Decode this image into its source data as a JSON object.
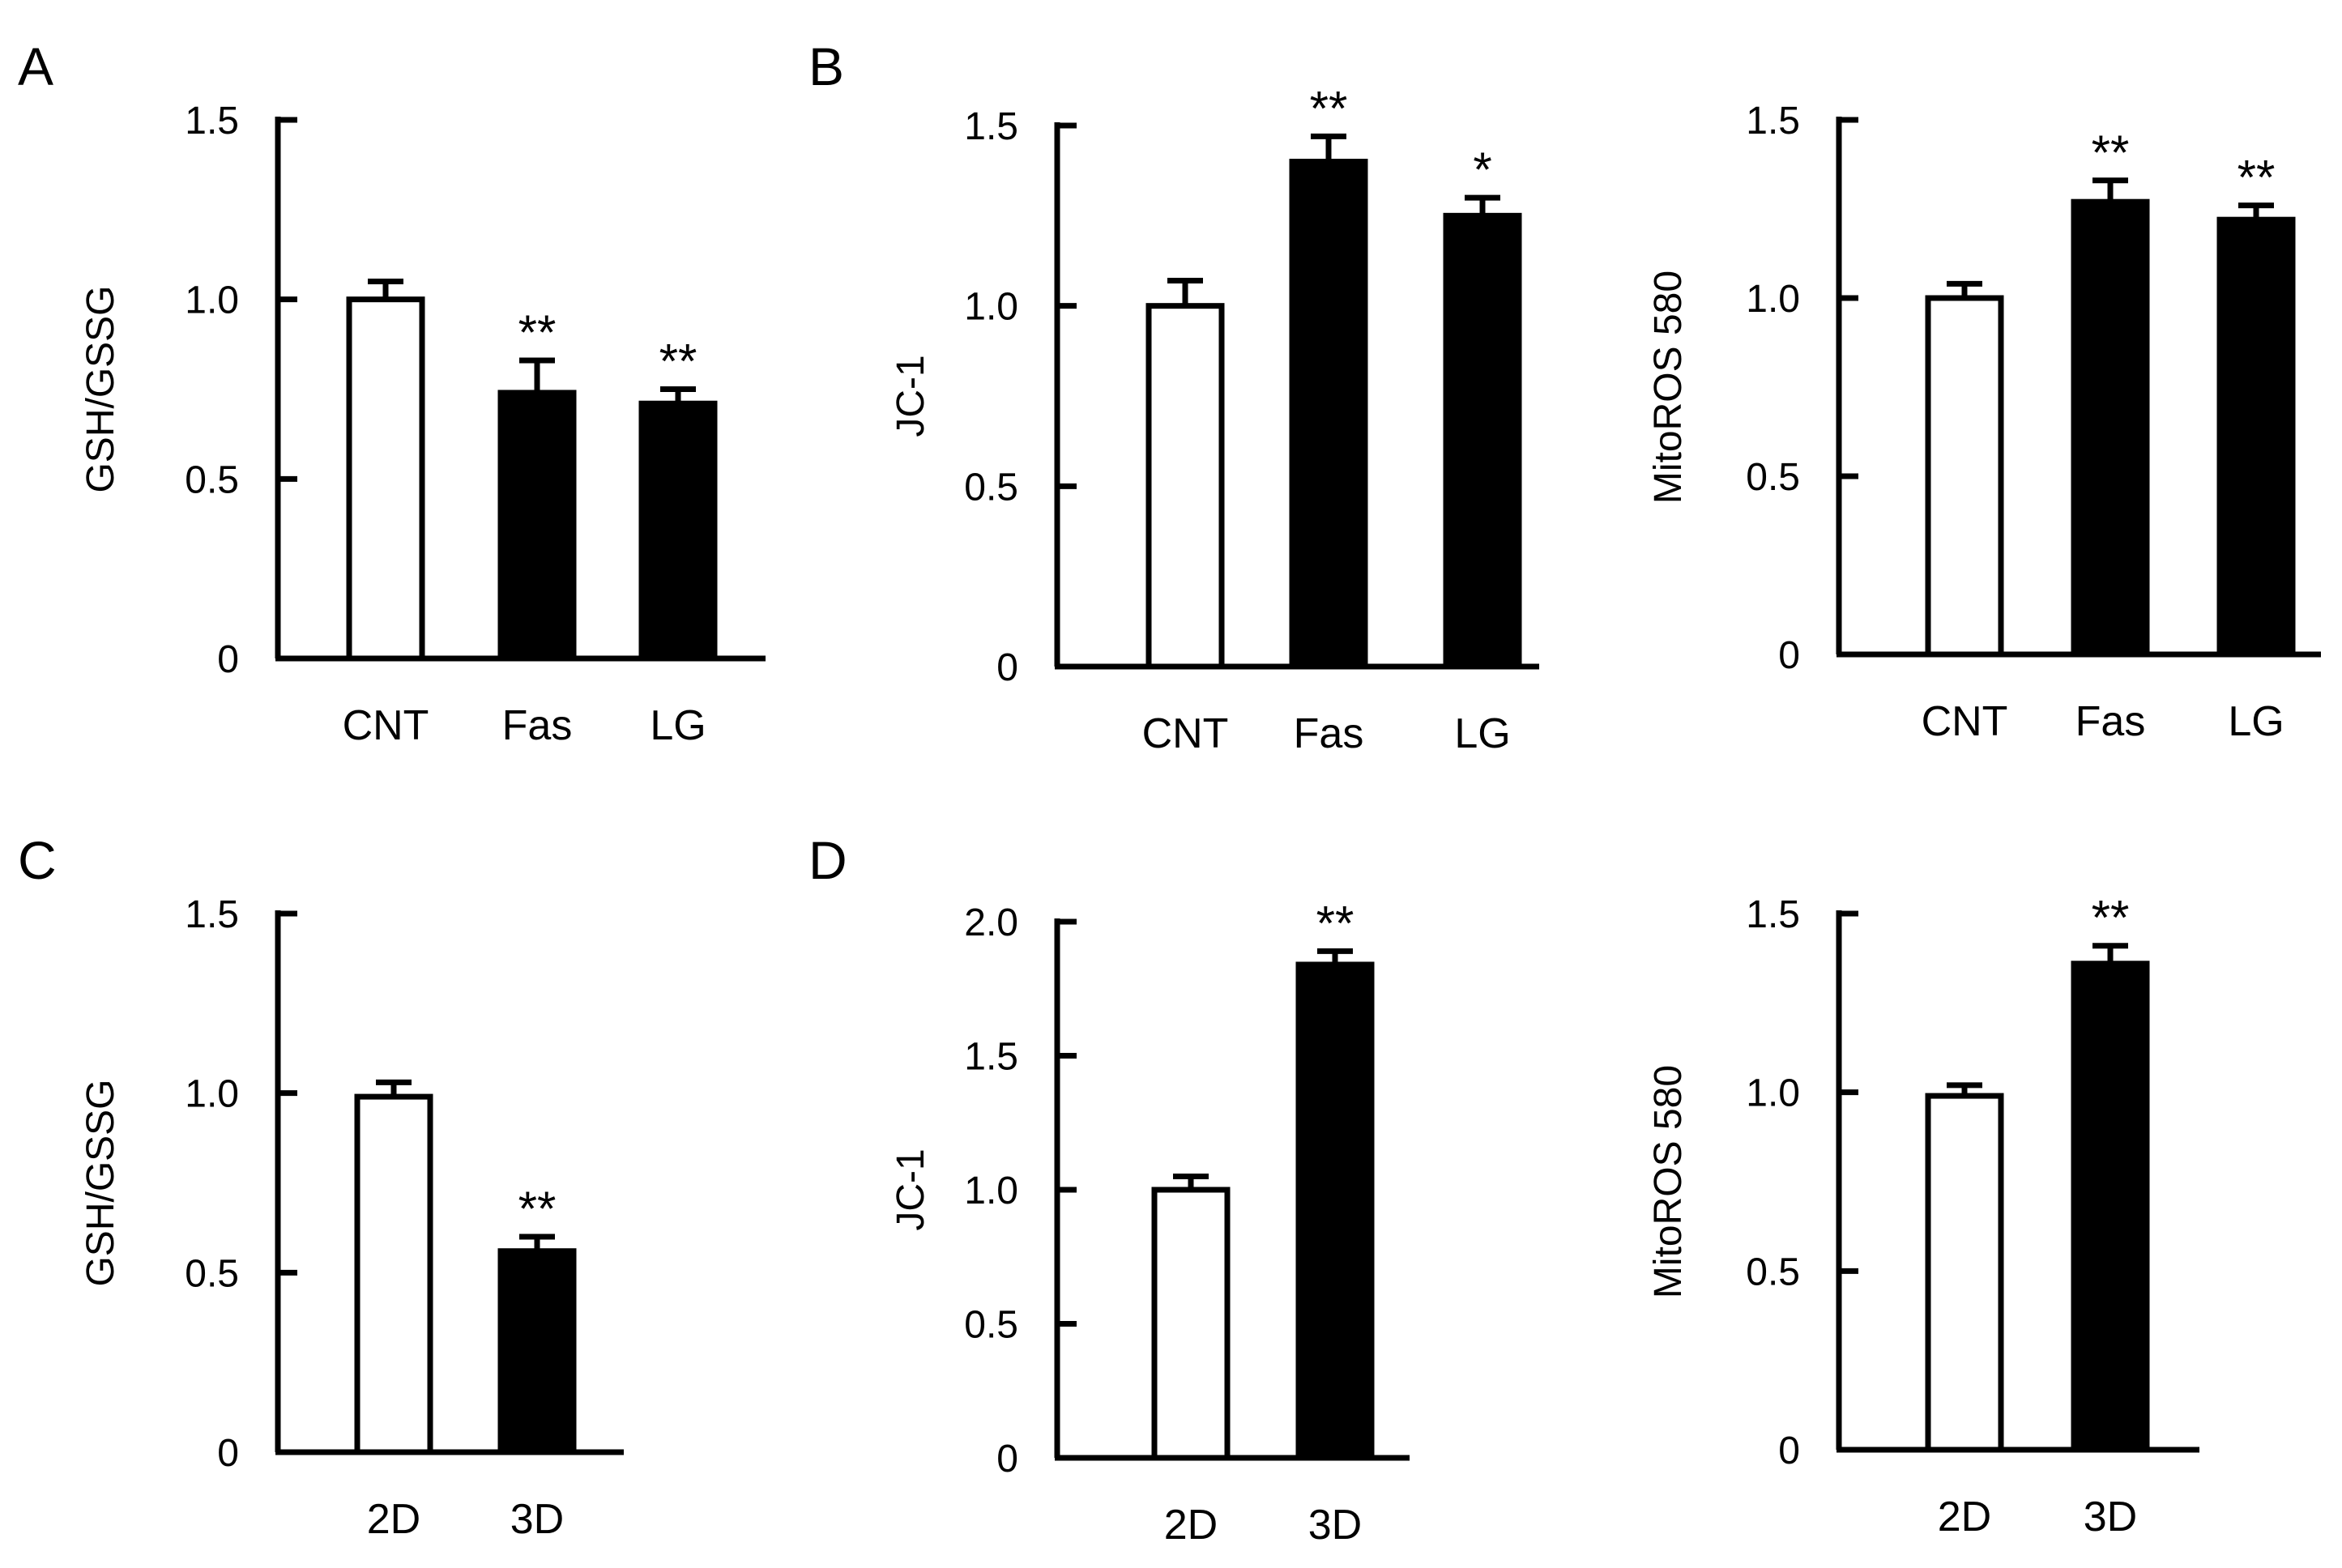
{
  "panels": [
    {
      "label": "A"
    },
    {
      "label": "B"
    },
    {
      "label": "C"
    },
    {
      "label": "D"
    }
  ],
  "chart_data": [
    {
      "panel": "A",
      "type": "bar",
      "title": "",
      "ylabel": "GSH/GSSG",
      "xlabel": "",
      "ylim": [
        0,
        1.5
      ],
      "yticks": [
        "0",
        "0.5",
        "1.0",
        "1.5"
      ],
      "categories": [
        "CNT",
        "Fas",
        "LG"
      ],
      "values": [
        1.0,
        0.74,
        0.71
      ],
      "errors": [
        0.05,
        0.09,
        0.04
      ],
      "fills": [
        "#ffffff",
        "#000000",
        "#000000"
      ],
      "significance": [
        "",
        "**",
        "**"
      ]
    },
    {
      "panel": "B",
      "type": "bar",
      "title": "",
      "ylabel": "JC-1",
      "xlabel": "",
      "ylim": [
        0,
        1.5
      ],
      "yticks": [
        "0",
        "0.5",
        "1.0",
        "1.5"
      ],
      "categories": [
        "CNT",
        "Fas",
        "LG"
      ],
      "values": [
        1.0,
        1.4,
        1.25
      ],
      "errors": [
        0.07,
        0.07,
        0.05
      ],
      "fills": [
        "#ffffff",
        "#000000",
        "#000000"
      ],
      "significance": [
        "",
        "**",
        "*"
      ]
    },
    {
      "panel": "B",
      "type": "bar",
      "title": "",
      "ylabel": "MitoROS 580",
      "xlabel": "",
      "ylim": [
        0,
        1.5
      ],
      "yticks": [
        "0",
        "0.5",
        "1.0",
        "1.5"
      ],
      "categories": [
        "CNT",
        "Fas",
        "LG"
      ],
      "values": [
        1.0,
        1.27,
        1.22
      ],
      "errors": [
        0.04,
        0.06,
        0.04
      ],
      "fills": [
        "#ffffff",
        "#000000",
        "#000000"
      ],
      "significance": [
        "",
        "**",
        "**"
      ]
    },
    {
      "panel": "C",
      "type": "bar",
      "title": "",
      "ylabel": "GSH/GSSG",
      "xlabel": "",
      "ylim": [
        0,
        1.5
      ],
      "yticks": [
        "0",
        "0.5",
        "1.0",
        "1.5"
      ],
      "categories": [
        "2D",
        "3D"
      ],
      "values": [
        0.99,
        0.56
      ],
      "errors": [
        0.04,
        0.04
      ],
      "fills": [
        "#ffffff",
        "#000000"
      ],
      "significance": [
        "",
        "**"
      ]
    },
    {
      "panel": "D",
      "type": "bar",
      "title": "",
      "ylabel": "JC-1",
      "xlabel": "",
      "ylim": [
        0,
        2.0
      ],
      "yticks": [
        "0",
        "0.5",
        "1.0",
        "1.5",
        "2.0"
      ],
      "categories": [
        "2D",
        "3D"
      ],
      "values": [
        1.0,
        1.84
      ],
      "errors": [
        0.05,
        0.05
      ],
      "fills": [
        "#ffffff",
        "#000000"
      ],
      "significance": [
        "",
        "**"
      ]
    },
    {
      "panel": "D",
      "type": "bar",
      "title": "",
      "ylabel": "MitoROS 580",
      "xlabel": "",
      "ylim": [
        0,
        1.5
      ],
      "yticks": [
        "0",
        "0.5",
        "1.0",
        "1.5"
      ],
      "categories": [
        "2D",
        "3D"
      ],
      "values": [
        0.99,
        1.36
      ],
      "errors": [
        0.03,
        0.05
      ],
      "fills": [
        "#ffffff",
        "#000000"
      ],
      "significance": [
        "",
        "**"
      ]
    }
  ]
}
